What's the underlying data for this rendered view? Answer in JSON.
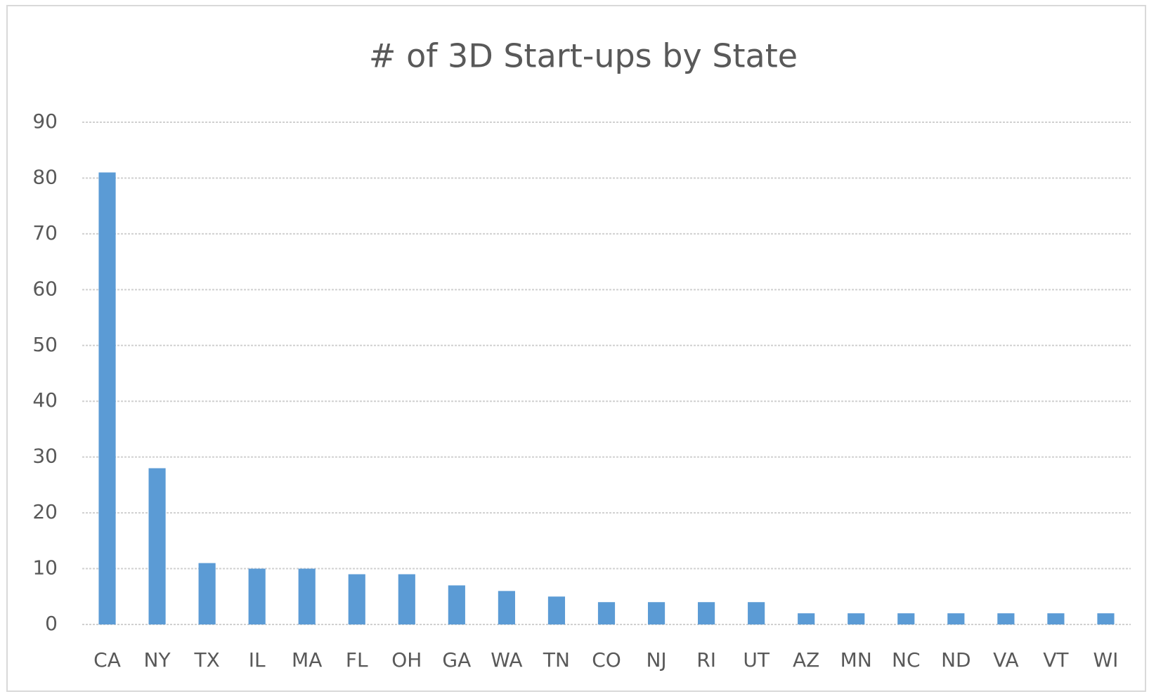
{
  "chart_data": {
    "type": "bar",
    "title": "# of 3D Start-ups by State",
    "categories": [
      "CA",
      "NY",
      "TX",
      "IL",
      "MA",
      "FL",
      "OH",
      "GA",
      "WA",
      "TN",
      "CO",
      "NJ",
      "RI",
      "UT",
      "AZ",
      "MN",
      "NC",
      "ND",
      "VA",
      "VT",
      "WI"
    ],
    "values": [
      81,
      28,
      11,
      10,
      10,
      9,
      9,
      7,
      6,
      5,
      4,
      4,
      4,
      4,
      2,
      2,
      2,
      2,
      2,
      2,
      2
    ],
    "color": "#5b9bd5",
    "ylim": [
      0,
      90
    ],
    "yticks": [
      0,
      10,
      20,
      30,
      40,
      50,
      60,
      70,
      80,
      90
    ],
    "grid": true
  }
}
